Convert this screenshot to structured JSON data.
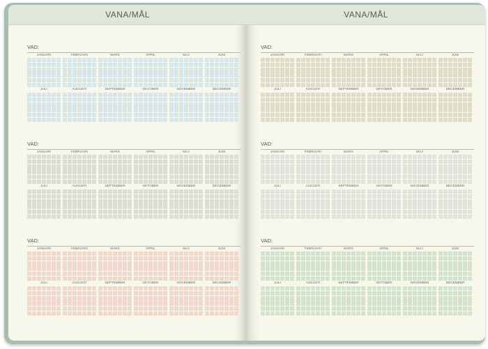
{
  "pages": [
    {
      "title": "VANA/MÅL",
      "sections": [
        {
          "label": "VAD:",
          "color": "#d7e6e8"
        },
        {
          "label": "VAD:",
          "color": "#dbdfd2"
        },
        {
          "label": "VAD:",
          "color": "#f0d8cc"
        }
      ]
    },
    {
      "title": "VANA/MÅL",
      "sections": [
        {
          "label": "VAD:",
          "color": "#ddddc8"
        },
        {
          "label": "VAD:",
          "color": "#e3e1dc"
        },
        {
          "label": "VAD:",
          "color": "#d3e3cd"
        }
      ]
    }
  ],
  "months": [
    "JANUARI",
    "FEBRUARI",
    "MARS",
    "APRIL",
    "MAJ",
    "JUNI",
    "JULI",
    "AUGUSTI",
    "SEPTEMBER",
    "OKTOBER",
    "NOVEMBER",
    "DECEMBER"
  ]
}
